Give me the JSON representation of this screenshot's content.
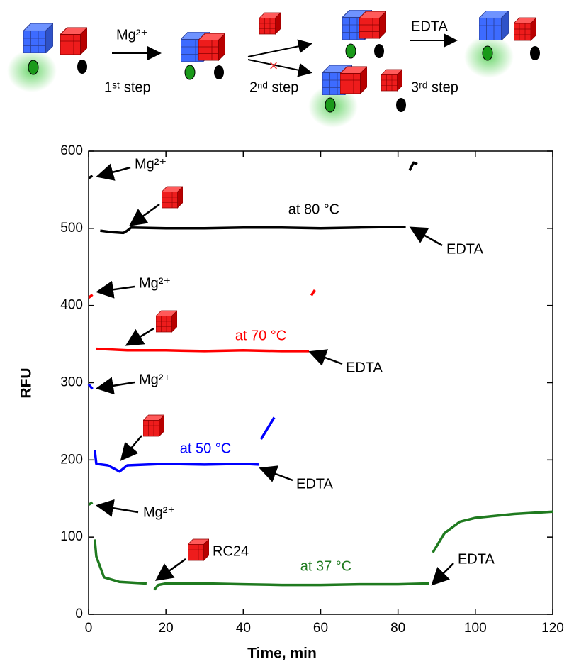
{
  "scheme": {
    "labels": [
      "Mg²⁺",
      "1ˢᵗ step",
      "2ⁿᵈ step",
      "EDTA",
      "3ʳᵈ step"
    ]
  },
  "chart_data": {
    "type": "line",
    "xlabel": "Time, min",
    "ylabel": "RFU",
    "xlim": [
      0,
      120
    ],
    "xticks": [
      0,
      20,
      40,
      60,
      80,
      100,
      120
    ],
    "ylim": [
      0,
      600
    ],
    "yticks": [
      0,
      100,
      200,
      300,
      400,
      500,
      600
    ],
    "series": [
      {
        "name": "at 80 °C",
        "color": "#000000",
        "x": [
          0,
          1,
          1.5,
          3,
          6,
          9,
          10,
          11,
          20,
          30,
          40,
          50,
          60,
          70,
          82,
          82.5,
          83,
          84,
          85
        ],
        "values": [
          565,
          568,
          null,
          497,
          495,
          494,
          497,
          501,
          500,
          500,
          501,
          501,
          500,
          501,
          502,
          null,
          575,
          585,
          583
        ]
      },
      {
        "name": "at 70 °C",
        "color": "#ff0000",
        "x": [
          0,
          1,
          1.5,
          2,
          10,
          20,
          30,
          40,
          50,
          57,
          57.5,
          57.6,
          58.5
        ],
        "values": [
          410,
          414,
          null,
          344,
          342,
          342,
          341,
          342,
          341,
          341,
          null,
          413,
          420
        ]
      },
      {
        "name": "at 50 °C",
        "color": "#0000ff",
        "x": [
          0,
          1,
          1.5,
          1.6,
          2,
          5,
          8,
          10,
          20,
          30,
          40,
          44,
          44.5,
          44.6,
          48
        ],
        "values": [
          298,
          292,
          null,
          213,
          195,
          193,
          185,
          193,
          195,
          194,
          195,
          194,
          null,
          227,
          255
        ]
      },
      {
        "name": "at 37 °C",
        "color": "#1f7a1f",
        "x": [
          0,
          1,
          1.5,
          1.6,
          2,
          4,
          8,
          15,
          16.5,
          17,
          18,
          20,
          30,
          40,
          50,
          60,
          70,
          80,
          88,
          88.5,
          89,
          92,
          96,
          100,
          110,
          120
        ],
        "values": [
          142,
          145,
          null,
          97,
          75,
          48,
          42,
          40,
          null,
          32,
          38,
          40,
          40,
          39,
          38,
          38,
          39,
          39,
          40,
          null,
          80,
          105,
          120,
          125,
          130,
          133
        ]
      }
    ],
    "annotations": [
      "Mg²⁺",
      "EDTA",
      "Mg²⁺",
      "EDTA",
      "Mg²⁺",
      "EDTA",
      "Mg²⁺",
      "EDTA",
      "RC24"
    ]
  }
}
